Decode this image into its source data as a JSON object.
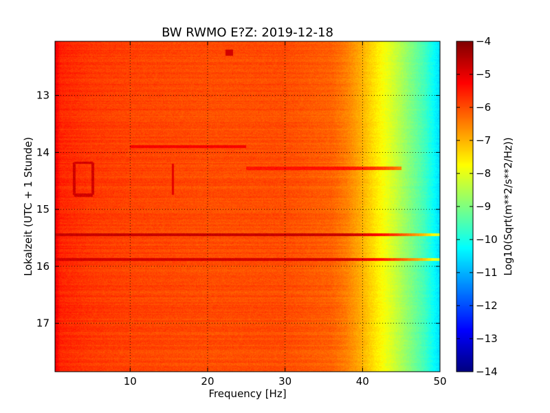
{
  "chart_data": {
    "type": "heatmap",
    "title": "BW RWMO E?Z: 2019-12-18",
    "xlabel": "Frequency [Hz]",
    "ylabel": "Lokalzeit (UTC + 1 Stunde)",
    "xlim": [
      0.3,
      50
    ],
    "ylim": [
      12.05,
      17.85
    ],
    "y_inverted": true,
    "x_ticks": [
      10,
      20,
      30,
      40,
      50
    ],
    "y_ticks": [
      13,
      14,
      15,
      16,
      17
    ],
    "grid": true,
    "colormap": "jet",
    "colorbar": {
      "label": "Log10(Sqrt(m**2/s**2/Hz))",
      "min": -14,
      "max": -4,
      "ticks": [
        -4,
        -5,
        -6,
        -7,
        -8,
        -9,
        -10,
        -11,
        -12,
        -13,
        -14
      ]
    },
    "frequency_profile": {
      "frequency_hz": [
        0.3,
        1,
        5,
        10,
        20,
        30,
        36,
        38,
        40,
        42,
        44,
        46,
        48,
        50
      ],
      "log10_amplitude": [
        -5.0,
        -5.6,
        -5.8,
        -5.9,
        -6.0,
        -6.0,
        -6.2,
        -6.5,
        -7.0,
        -7.6,
        -8.2,
        -8.9,
        -9.6,
        -10.6
      ]
    },
    "horizontal_bands": [
      {
        "time": 15.45,
        "freq_range": [
          0.3,
          50
        ],
        "log10_amplitude": -4.7
      },
      {
        "time": 15.88,
        "freq_range": [
          0.3,
          50
        ],
        "log10_amplitude": -4.8
      },
      {
        "time": 13.9,
        "freq_range": [
          10,
          25
        ],
        "log10_amplitude": -5.2
      },
      {
        "time": 14.28,
        "freq_range": [
          25,
          45
        ],
        "log10_amplitude": -5.4
      }
    ],
    "features": [
      {
        "type": "box",
        "freq_range": [
          2.8,
          5.2
        ],
        "time_range": [
          14.18,
          14.75
        ],
        "log10_amplitude": -4.8
      },
      {
        "type": "vertical_line",
        "freq": 15.5,
        "time_range": [
          14.2,
          14.75
        ],
        "log10_amplitude": -5.0
      },
      {
        "type": "spot",
        "freq": 22.8,
        "time": 12.25,
        "log10_amplitude": -4.8
      }
    ]
  }
}
